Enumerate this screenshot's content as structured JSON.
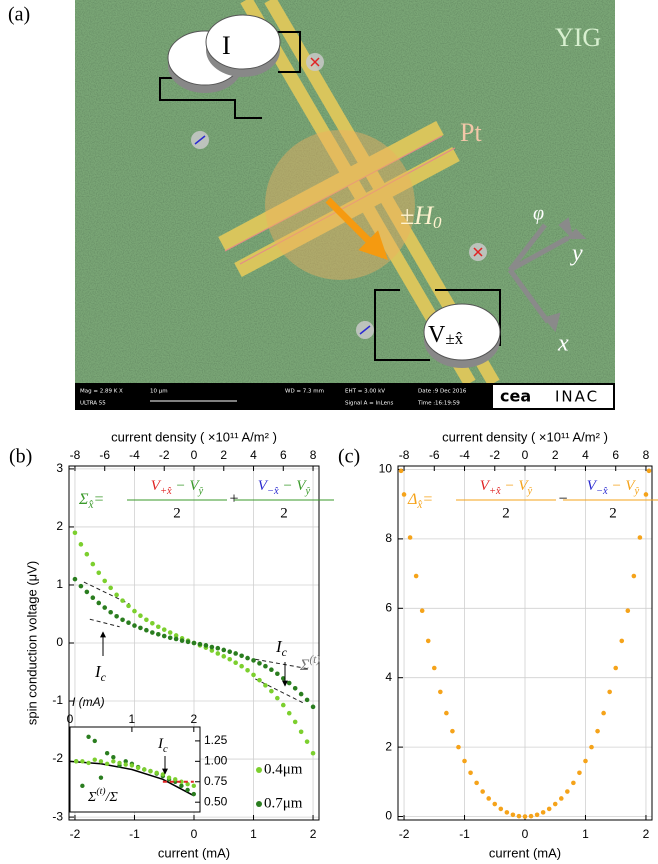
{
  "panel_a": {
    "label": "(a)",
    "substrate": "YIG",
    "strip": "Pt",
    "field": "±H",
    "field_sub": "0",
    "current_meter": "I",
    "voltage_meter": "V",
    "voltage_meter_sub": "±x̂",
    "axis_y": "y",
    "axis_x": "x",
    "axis_phi": "φ",
    "sem": {
      "mag": "Mag =  2.89 K X",
      "model": "ULTRA 55",
      "scale": "10 μm",
      "wd": "WD = 7.3 mm",
      "eht": "EHT = 3.00 kV",
      "signal": "Signal A = InLens",
      "date": "Date :9 Dec 2016",
      "time": "Time :16:19:59",
      "logo1": "cea",
      "logo2": "INAC"
    }
  },
  "chart_data": [
    {
      "type": "scatter",
      "panel_label": "(b)",
      "x_label": "current (mA)",
      "y_label": "spin conduction voltage (μV)",
      "x2_label": "current density ( ×10¹¹ A/m² )",
      "xlim": [
        -2.1,
        2.1
      ],
      "xticks": [
        -2,
        -1,
        0,
        1,
        2
      ],
      "x2lim": [
        -8.4,
        8.4
      ],
      "x2ticks": [
        -8,
        -6,
        -4,
        -2,
        0,
        2,
        4,
        6,
        8
      ],
      "ylim": [
        -3.05,
        3.05
      ],
      "yticks": [
        -3,
        -2,
        -1,
        0,
        1,
        2,
        3
      ],
      "ytick_color": "#2a7d1f",
      "grid": true,
      "legend": "lower right",
      "x": [
        -2,
        -1.9,
        -1.8,
        -1.7,
        -1.6,
        -1.5,
        -1.4,
        -1.3,
        -1.2,
        -1.1,
        -1,
        -0.9,
        -0.8,
        -0.7,
        -0.6,
        -0.5,
        -0.4,
        -0.3,
        -0.2,
        -0.1,
        0,
        0.1,
        0.2,
        0.3,
        0.4,
        0.5,
        0.6,
        0.7,
        0.8,
        0.9,
        1,
        1.1,
        1.2,
        1.3,
        1.4,
        1.5,
        1.6,
        1.7,
        1.8,
        1.9,
        2
      ],
      "series": [
        {
          "name": "0.4μm",
          "color": "#7ccf2e",
          "values": [
            1.9,
            1.7,
            1.53,
            1.36,
            1.21,
            1.07,
            0.95,
            0.83,
            0.73,
            0.64,
            0.55,
            0.47,
            0.4,
            0.34,
            0.28,
            0.23,
            0.18,
            0.13,
            0.08,
            0.04,
            0,
            -0.04,
            -0.08,
            -0.13,
            -0.18,
            -0.23,
            -0.28,
            -0.34,
            -0.4,
            -0.47,
            -0.55,
            -0.64,
            -0.73,
            -0.83,
            -0.95,
            -1.07,
            -1.21,
            -1.36,
            -1.53,
            -1.7,
            -1.9
          ]
        },
        {
          "name": "0.7μm",
          "color": "#2a7d1f",
          "values": [
            1.1,
            0.98,
            0.88,
            0.78,
            0.69,
            0.61,
            0.53,
            0.46,
            0.4,
            0.35,
            0.3,
            0.26,
            0.22,
            0.18,
            0.15,
            0.12,
            0.09,
            0.07,
            0.04,
            0.02,
            0,
            -0.02,
            -0.04,
            -0.07,
            -0.09,
            -0.12,
            -0.15,
            -0.18,
            -0.22,
            -0.26,
            -0.3,
            -0.35,
            -0.4,
            -0.46,
            -0.53,
            -0.61,
            -0.69,
            -0.78,
            -0.88,
            -0.98,
            -1.1
          ]
        }
      ],
      "reference_lines": [
        {
          "x": [
            -1.85,
            -1.08
          ],
          "y": [
            1.05,
            0.67
          ]
        },
        {
          "x": [
            -1.75,
            -1.25
          ],
          "y": [
            0.41,
            0.28
          ]
        },
        {
          "x": [
            1.03,
            1.95
          ],
          "y": [
            -0.28,
            -0.45
          ]
        },
        {
          "x": [
            1.03,
            1.87
          ],
          "y": [
            -0.62,
            -1.05
          ]
        }
      ],
      "formula": {
        "lhs": "Σ",
        "lhs_sub": "x̂",
        "eq": "=",
        "num1": "V",
        "num1_sub": "+x̂",
        "num_rest": " − V",
        "num_rest_sub": "ŷ",
        "den": "2",
        "op": "+",
        "num2": "V",
        "num2_sub": "−x̂",
        "color": "#3a9a2a",
        "plus_color": "#e02424",
        "minus_color": "#2a2ad0"
      },
      "annotations": {
        "critical": "I",
        "critical_sub": "c",
        "tangent": "Σ",
        "tangent_sup": "(t)"
      }
    },
    {
      "type": "scatter",
      "x_label": "I (mA)",
      "xlim": [
        0,
        2.1
      ],
      "xticks": [
        0,
        1,
        2
      ],
      "ylim": [
        0.38,
        1.42
      ],
      "yticks": [
        {
          "value": 0.5,
          "label": "0.50"
        },
        {
          "value": 0.75,
          "label": "0.75"
        },
        {
          "value": 1,
          "label": "1.00"
        },
        {
          "value": 1.25,
          "label": "1.25"
        }
      ],
      "x": [
        0.1,
        0.2,
        0.3,
        0.4,
        0.5,
        0.6,
        0.7,
        0.8,
        0.9,
        1,
        1.1,
        1.2,
        1.3,
        1.4,
        1.5,
        1.6,
        1.7,
        1.8,
        1.9,
        2
      ],
      "series": [
        {
          "color": "#2a7d1f",
          "values": [
            1.0,
            0.7,
            1.3,
            1.25,
            0.8,
            1.1,
            1.05,
            0.95,
            1.0,
            0.97,
            0.93,
            0.9,
            0.88,
            0.85,
            0.82,
            0.78,
            0.75,
            0.7,
            0.65,
            0.6
          ]
        },
        {
          "color": "#7ccf2e",
          "values": [
            1.0,
            1.0,
            0.98,
            1.02,
            1.0,
            0.97,
            1.0,
            0.98,
            0.96,
            0.95,
            0.92,
            0.9,
            0.88,
            0.86,
            0.84,
            0.8,
            0.78,
            0.75,
            0.72,
            0.7
          ]
        }
      ],
      "curve": {
        "x": [
          0,
          0.5,
          1,
          1.5,
          2
        ],
        "y": [
          1.0,
          0.97,
          0.9,
          0.78,
          0.58
        ],
        "color": "#000000"
      },
      "threshold": {
        "x": [
          1.5,
          2
        ],
        "y": 0.75,
        "color": "#e02424"
      },
      "annotations": {
        "ratio": "Σ",
        "ratio_sup": "(t)",
        "ratio_rest": "/Σ",
        "critical": "I",
        "critical_sub": "c"
      }
    },
    {
      "type": "scatter",
      "panel_label": "(c)",
      "x_label": "current (mA)",
      "x2_label": "current density ( ×10¹¹ A/m² )",
      "xlim": [
        -2.1,
        2.1
      ],
      "xticks": [
        -2,
        -1,
        0,
        1,
        2
      ],
      "x2lim": [
        -8.4,
        8.4
      ],
      "x2ticks": [
        -8,
        -6,
        -4,
        -2,
        0,
        2,
        4,
        6,
        8
      ],
      "ylim": [
        -0.1,
        10.1
      ],
      "yticks": [
        0,
        2,
        4,
        6,
        8,
        10
      ],
      "ytick_color": "#f5a31a",
      "grid": true,
      "x": [
        -2.05,
        -2,
        -1.9,
        -1.8,
        -1.7,
        -1.6,
        -1.5,
        -1.4,
        -1.3,
        -1.2,
        -1.1,
        -1,
        -0.9,
        -0.8,
        -0.7,
        -0.6,
        -0.5,
        -0.4,
        -0.3,
        -0.2,
        -0.1,
        0,
        0.1,
        0.2,
        0.3,
        0.4,
        0.5,
        0.6,
        0.7,
        0.8,
        0.9,
        1,
        1.1,
        1.2,
        1.3,
        1.4,
        1.5,
        1.6,
        1.7,
        1.8,
        1.9,
        2,
        2.05
      ],
      "series": [
        {
          "color": "#f5a31a",
          "values": [
            9.96,
            9.28,
            8.04,
            6.93,
            5.93,
            5.06,
            4.28,
            3.59,
            2.98,
            2.46,
            2.0,
            1.6,
            1.26,
            0.97,
            0.72,
            0.52,
            0.36,
            0.22,
            0.12,
            0.05,
            0.01,
            0,
            0.01,
            0.05,
            0.12,
            0.22,
            0.36,
            0.52,
            0.72,
            0.97,
            1.26,
            1.6,
            2.0,
            2.46,
            2.98,
            3.59,
            4.28,
            5.06,
            5.93,
            6.93,
            8.04,
            9.28,
            9.96
          ]
        }
      ],
      "formula": {
        "lhs": "Δ",
        "lhs_sub": "x̂",
        "eq": "=",
        "num1": "V",
        "num1_sub": "+x̂",
        "num_rest": " − V",
        "num_rest_sub": "ŷ",
        "den": "2",
        "op": "−",
        "num2": "V",
        "num2_sub": "−x̂",
        "color": "#f5a31a",
        "plus_color": "#e02424",
        "minus_color": "#2a2ad0"
      }
    }
  ]
}
